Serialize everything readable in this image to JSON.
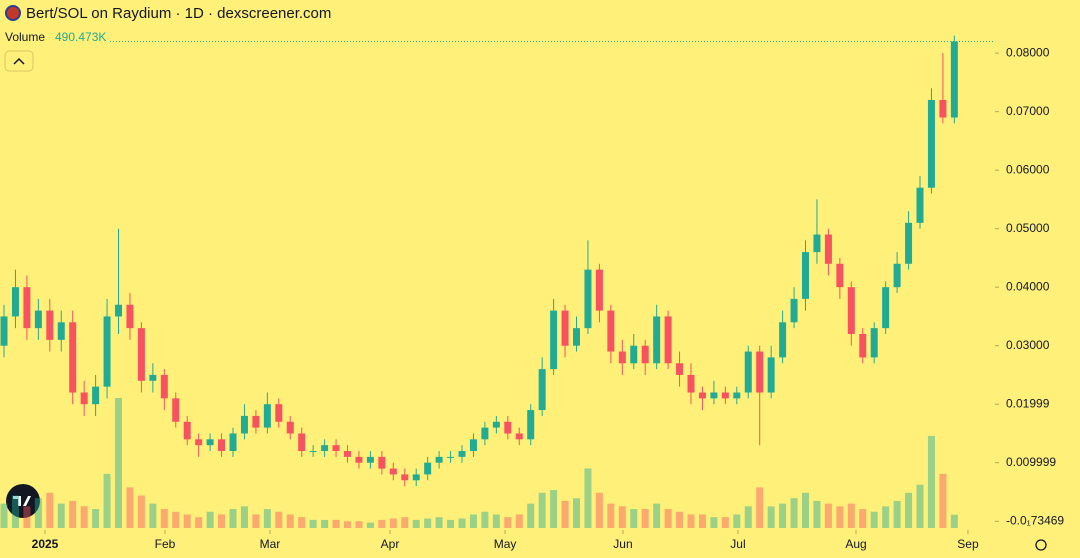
{
  "chart_data": {
    "type": "candlestick",
    "title": "Bert/SOL on Raydium · 1D · dexscreener.com",
    "up_color": "#22ab94",
    "down_color": "#f7525f",
    "background": "#fff07a",
    "open": [
      0.03,
      0.035,
      0.04,
      0.033,
      0.036,
      0.031,
      0.034,
      0.022,
      0.02,
      0.023,
      0.035,
      0.037,
      0.033,
      0.024,
      0.025,
      0.021,
      0.017,
      0.014,
      0.013,
      0.014,
      0.012,
      0.015,
      0.018,
      0.016,
      0.02,
      0.017,
      0.015,
      0.012,
      0.012,
      0.013,
      0.012,
      0.011,
      0.01,
      0.011,
      0.009,
      0.008,
      0.007,
      0.008,
      0.01,
      0.011,
      0.011,
      0.012,
      0.014,
      0.016,
      0.017,
      0.015,
      0.014,
      0.019,
      0.026,
      0.036,
      0.03,
      0.033,
      0.043,
      0.036,
      0.029,
      0.027,
      0.03,
      0.027,
      0.035,
      0.027,
      0.025,
      0.022,
      0.021,
      0.022,
      0.021,
      0.022,
      0.029,
      0.022,
      0.028,
      0.034,
      0.038,
      0.046,
      0.049,
      0.044,
      0.04,
      0.032,
      0.028,
      0.033,
      0.04,
      0.044,
      0.051,
      0.057,
      0.072,
      0.069
    ],
    "high": [
      0.037,
      0.043,
      0.042,
      0.038,
      0.038,
      0.036,
      0.036,
      0.024,
      0.025,
      0.038,
      0.05,
      0.039,
      0.034,
      0.027,
      0.026,
      0.022,
      0.018,
      0.015,
      0.015,
      0.015,
      0.016,
      0.02,
      0.019,
      0.022,
      0.021,
      0.018,
      0.016,
      0.013,
      0.014,
      0.014,
      0.013,
      0.012,
      0.012,
      0.012,
      0.01,
      0.009,
      0.009,
      0.011,
      0.012,
      0.012,
      0.013,
      0.015,
      0.017,
      0.018,
      0.018,
      0.016,
      0.02,
      0.028,
      0.038,
      0.037,
      0.035,
      0.048,
      0.044,
      0.037,
      0.031,
      0.032,
      0.031,
      0.037,
      0.036,
      0.029,
      0.027,
      0.023,
      0.024,
      0.023,
      0.023,
      0.03,
      0.03,
      0.03,
      0.036,
      0.04,
      0.048,
      0.055,
      0.05,
      0.045,
      0.041,
      0.033,
      0.034,
      0.041,
      0.046,
      0.053,
      0.059,
      0.074,
      0.08,
      0.083
    ],
    "low": [
      0.028,
      0.033,
      0.031,
      0.031,
      0.029,
      0.029,
      0.02,
      0.018,
      0.018,
      0.021,
      0.032,
      0.031,
      0.022,
      0.022,
      0.019,
      0.016,
      0.013,
      0.011,
      0.012,
      0.011,
      0.011,
      0.014,
      0.015,
      0.015,
      0.016,
      0.014,
      0.011,
      0.011,
      0.011,
      0.011,
      0.01,
      0.009,
      0.009,
      0.008,
      0.007,
      0.006,
      0.006,
      0.007,
      0.009,
      0.01,
      0.01,
      0.011,
      0.013,
      0.015,
      0.014,
      0.013,
      0.013,
      0.018,
      0.025,
      0.028,
      0.029,
      0.032,
      0.034,
      0.027,
      0.025,
      0.026,
      0.025,
      0.026,
      0.026,
      0.023,
      0.02,
      0.019,
      0.02,
      0.02,
      0.02,
      0.021,
      0.013,
      0.021,
      0.027,
      0.033,
      0.036,
      0.044,
      0.042,
      0.038,
      0.03,
      0.027,
      0.027,
      0.032,
      0.039,
      0.043,
      0.05,
      0.056,
      0.068,
      0.068
    ],
    "close": [
      0.035,
      0.04,
      0.033,
      0.036,
      0.031,
      0.034,
      0.022,
      0.02,
      0.023,
      0.035,
      0.037,
      0.033,
      0.024,
      0.025,
      0.021,
      0.017,
      0.014,
      0.013,
      0.014,
      0.012,
      0.015,
      0.018,
      0.016,
      0.02,
      0.017,
      0.015,
      0.012,
      0.012,
      0.013,
      0.012,
      0.011,
      0.01,
      0.011,
      0.009,
      0.008,
      0.007,
      0.008,
      0.01,
      0.011,
      0.011,
      0.012,
      0.014,
      0.016,
      0.017,
      0.015,
      0.014,
      0.019,
      0.026,
      0.036,
      0.03,
      0.033,
      0.043,
      0.036,
      0.029,
      0.027,
      0.03,
      0.027,
      0.035,
      0.027,
      0.025,
      0.022,
      0.021,
      0.022,
      0.021,
      0.022,
      0.029,
      0.022,
      0.028,
      0.034,
      0.038,
      0.046,
      0.049,
      0.044,
      0.04,
      0.032,
      0.028,
      0.033,
      0.04,
      0.044,
      0.051,
      0.057,
      0.072,
      0.069,
      0.082
    ],
    "volume": {
      "name": "Volume",
      "last_label": "490.473K",
      "values": [
        900000,
        1200000,
        800000,
        1100000,
        1300000,
        900000,
        1000000,
        800000,
        700000,
        2000000,
        4800000,
        1500000,
        1200000,
        900000,
        700000,
        600000,
        500000,
        400000,
        600000,
        500000,
        700000,
        800000,
        500000,
        700000,
        600000,
        500000,
        400000,
        300000,
        300000,
        300000,
        250000,
        250000,
        200000,
        300000,
        350000,
        400000,
        300000,
        350000,
        400000,
        300000,
        350000,
        500000,
        600000,
        500000,
        400000,
        500000,
        900000,
        1300000,
        1400000,
        1000000,
        1100000,
        2200000,
        1300000,
        900000,
        800000,
        700000,
        700000,
        900000,
        700000,
        600000,
        500000,
        500000,
        400000,
        400000,
        500000,
        800000,
        1500000,
        800000,
        900000,
        1100000,
        1300000,
        1000000,
        900000,
        800000,
        900000,
        700000,
        600000,
        800000,
        1000000,
        1300000,
        1600000,
        3400000,
        2000000,
        490473
      ]
    },
    "xlim": [
      -0.35,
      86.55
    ],
    "xticks": [
      {
        "value": 3.58,
        "label": "2025"
      },
      {
        "value": 14.06,
        "label": "Feb"
      },
      {
        "value": 23.23,
        "label": "Mar"
      },
      {
        "value": 33.71,
        "label": "Apr"
      },
      {
        "value": 43.76,
        "label": "May"
      },
      {
        "value": 54.06,
        "label": "Jun"
      },
      {
        "value": 64.1,
        "label": "Jul"
      },
      {
        "value": 74.41,
        "label": "Aug"
      },
      {
        "value": 84.19,
        "label": "Sep"
      }
    ],
    "ylim": [
      -0.0015,
      0.0843
    ],
    "yticks": [
      {
        "value": 0.08,
        "label": "0.08000"
      },
      {
        "value": 0.07,
        "label": "0.07000"
      },
      {
        "value": 0.06,
        "label": "0.06000"
      },
      {
        "value": 0.05,
        "label": "0.05000"
      },
      {
        "value": 0.04,
        "label": "0.04000"
      },
      {
        "value": 0.03,
        "label": "0.03000"
      },
      {
        "value": 0.01999,
        "label": "0.01999"
      },
      {
        "value": 0.009999,
        "label": "0.009999"
      },
      {
        "value": -1.73469e-05,
        "label": "-0.0₁73469"
      }
    ]
  }
}
